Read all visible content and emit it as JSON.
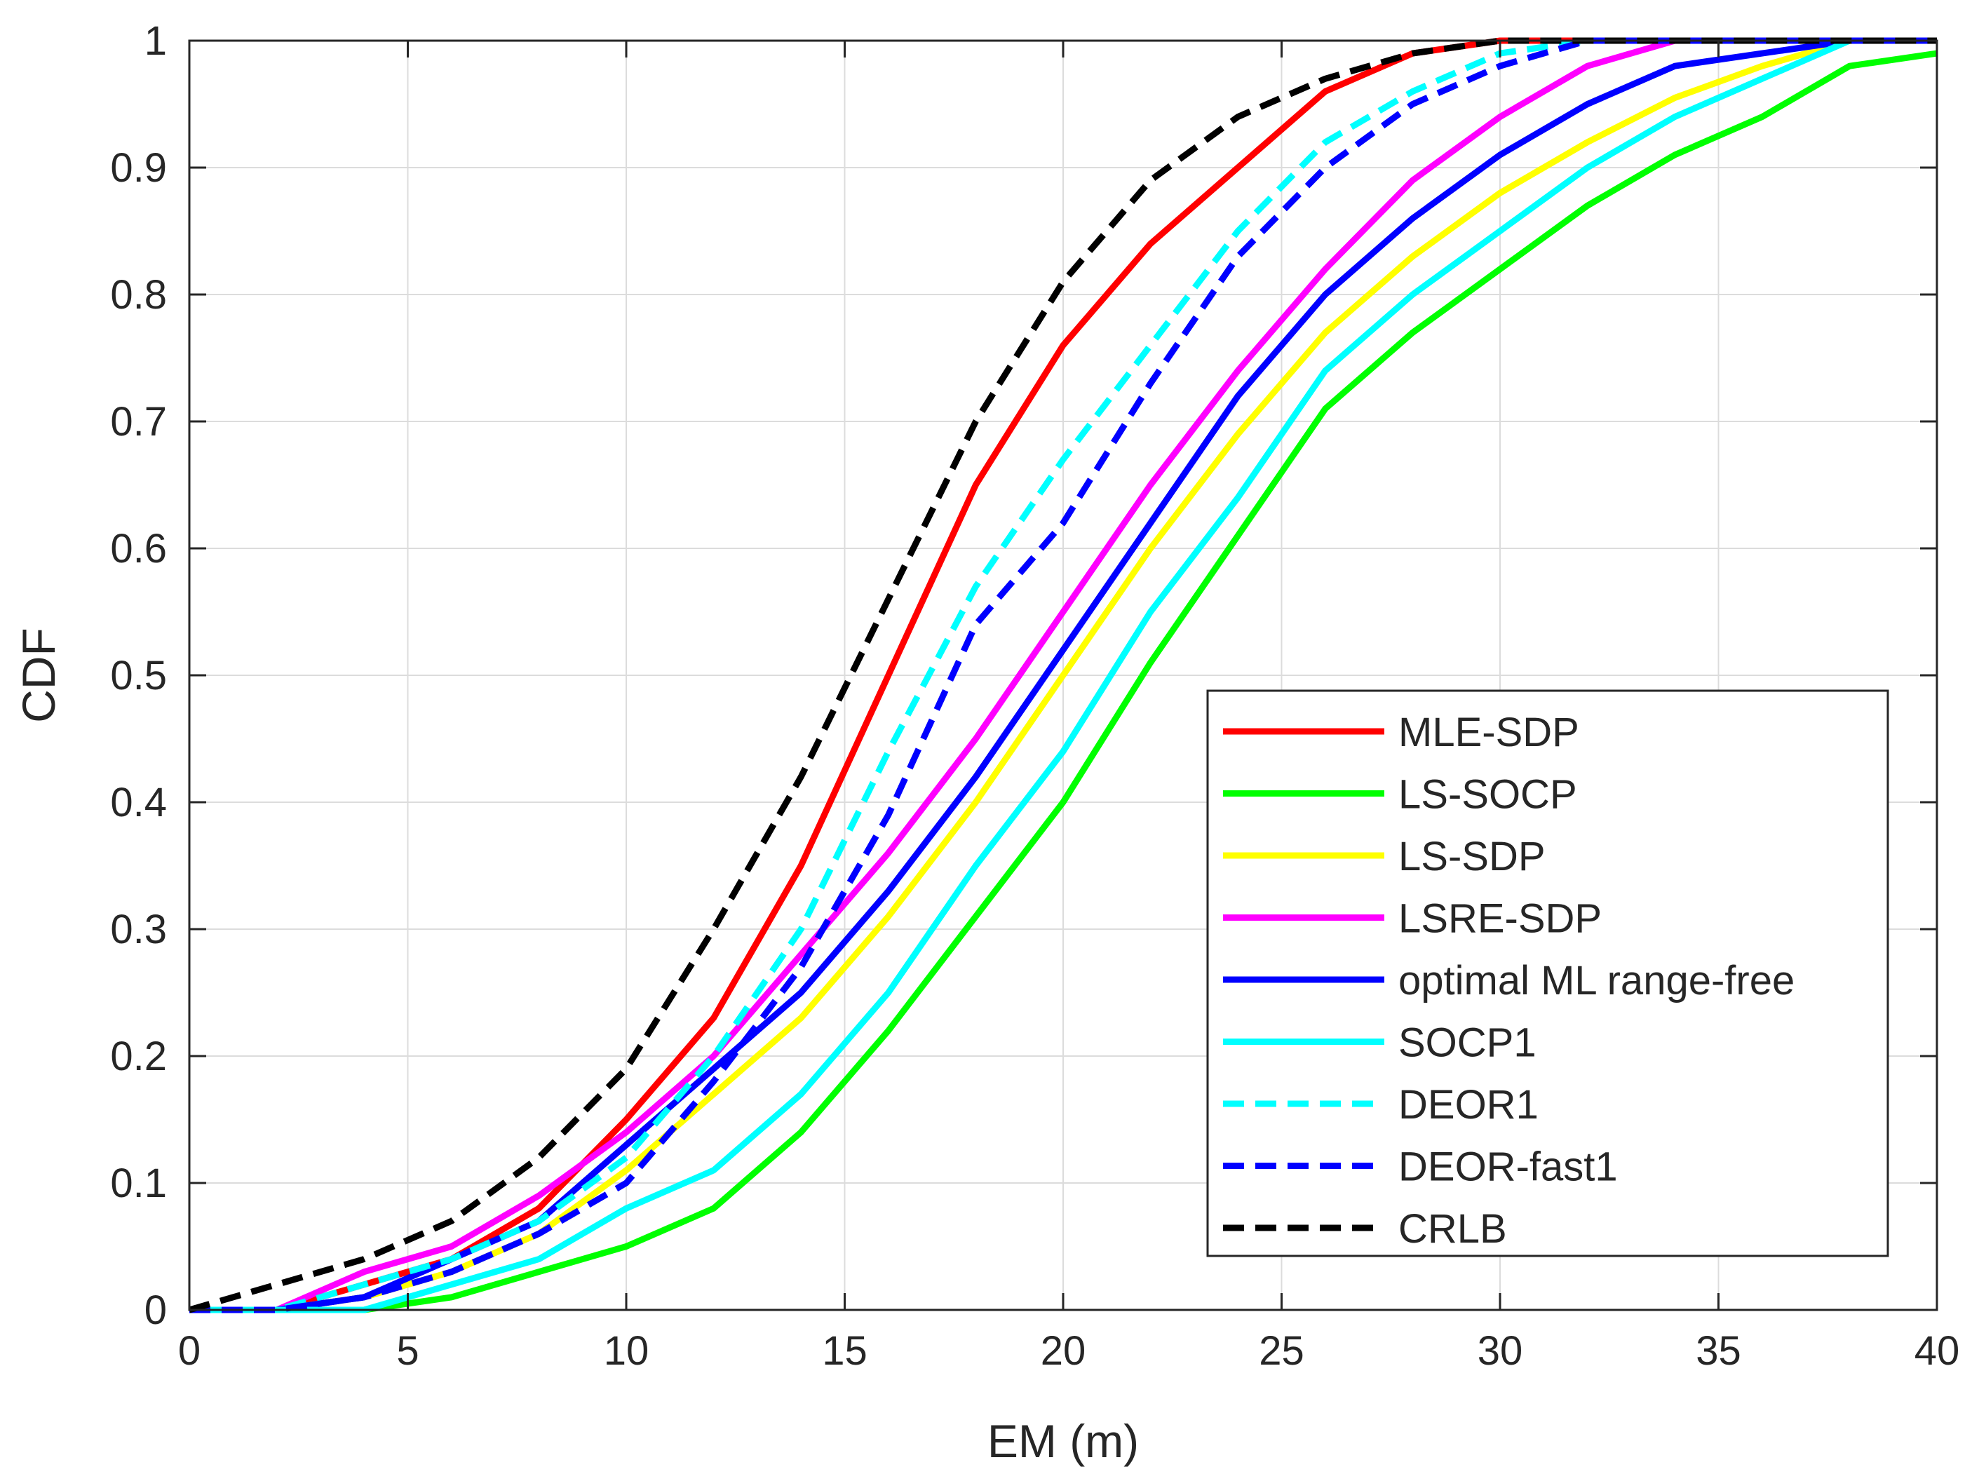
{
  "chart_data": {
    "type": "line",
    "title": "",
    "xlabel": "EM (m)",
    "ylabel": "CDF",
    "xlim": [
      0,
      40
    ],
    "ylim": [
      0,
      1
    ],
    "xticks": [
      0,
      5,
      10,
      15,
      20,
      25,
      30,
      35,
      40
    ],
    "yticks": [
      0,
      0.1,
      0.2,
      0.3,
      0.4,
      0.5,
      0.6,
      0.7,
      0.8,
      0.9,
      1
    ],
    "xtick_labels": [
      "0",
      "5",
      "10",
      "15",
      "20",
      "25",
      "30",
      "35",
      "40"
    ],
    "ytick_labels": [
      "0",
      "0.1",
      "0.2",
      "0.3",
      "0.4",
      "0.5",
      "0.6",
      "0.7",
      "0.8",
      "0.9",
      "1"
    ],
    "grid": true,
    "legend_position": "bottom-right",
    "x": [
      0,
      2,
      4,
      6,
      8,
      10,
      12,
      14,
      16,
      18,
      20,
      22,
      24,
      26,
      28,
      30,
      32,
      34,
      36,
      38,
      40
    ],
    "series": [
      {
        "name": "MLE-SDP",
        "color": "#ff0000",
        "dash": "solid",
        "values": [
          0,
          0,
          0.02,
          0.04,
          0.08,
          0.15,
          0.23,
          0.35,
          0.5,
          0.65,
          0.76,
          0.84,
          0.9,
          0.96,
          0.99,
          1,
          1,
          1,
          1,
          1,
          1
        ]
      },
      {
        "name": "LS-SOCP",
        "color": "#00ff00",
        "dash": "solid",
        "values": [
          0,
          0,
          0,
          0.01,
          0.03,
          0.05,
          0.08,
          0.14,
          0.22,
          0.31,
          0.4,
          0.51,
          0.61,
          0.71,
          0.77,
          0.82,
          0.87,
          0.91,
          0.94,
          0.98,
          0.99
        ]
      },
      {
        "name": "LS-SDP",
        "color": "#ffff00",
        "dash": "solid",
        "values": [
          0,
          0,
          0.01,
          0.03,
          0.06,
          0.11,
          0.17,
          0.23,
          0.31,
          0.4,
          0.5,
          0.6,
          0.69,
          0.77,
          0.83,
          0.88,
          0.92,
          0.955,
          0.98,
          1,
          1
        ]
      },
      {
        "name": "LSRE-SDP",
        "color": "#ff00ff",
        "dash": "solid",
        "values": [
          0,
          0,
          0.03,
          0.05,
          0.09,
          0.14,
          0.2,
          0.28,
          0.36,
          0.45,
          0.55,
          0.65,
          0.74,
          0.82,
          0.89,
          0.94,
          0.98,
          1,
          1,
          1,
          1
        ]
      },
      {
        "name": "optimal ML range-free",
        "color": "#0000ff",
        "dash": "solid",
        "values": [
          0,
          0,
          0.01,
          0.04,
          0.07,
          0.13,
          0.19,
          0.25,
          0.33,
          0.42,
          0.52,
          0.62,
          0.72,
          0.8,
          0.86,
          0.91,
          0.95,
          0.98,
          0.99,
          1,
          1
        ]
      },
      {
        "name": "SOCP1",
        "color": "#00ffff",
        "dash": "solid",
        "values": [
          0,
          0,
          0,
          0.02,
          0.04,
          0.08,
          0.11,
          0.17,
          0.25,
          0.35,
          0.44,
          0.55,
          0.64,
          0.74,
          0.8,
          0.85,
          0.9,
          0.94,
          0.97,
          1,
          1
        ]
      },
      {
        "name": "DEOR1",
        "color": "#00ffff",
        "dash": "dashed",
        "values": [
          0,
          0,
          0.02,
          0.04,
          0.07,
          0.12,
          0.2,
          0.3,
          0.44,
          0.57,
          0.67,
          0.76,
          0.85,
          0.92,
          0.96,
          0.99,
          1,
          1,
          1,
          1,
          1
        ]
      },
      {
        "name": "DEOR-fast1",
        "color": "#0000ff",
        "dash": "dashed",
        "values": [
          0,
          0,
          0.01,
          0.03,
          0.06,
          0.1,
          0.18,
          0.27,
          0.39,
          0.54,
          0.62,
          0.73,
          0.83,
          0.9,
          0.95,
          0.98,
          1,
          1,
          1,
          1,
          1
        ]
      },
      {
        "name": "CRLB",
        "color": "#000000",
        "dash": "dashed",
        "values": [
          0,
          0.02,
          0.04,
          0.07,
          0.12,
          0.19,
          0.3,
          0.42,
          0.56,
          0.7,
          0.81,
          0.89,
          0.94,
          0.97,
          0.99,
          1,
          1,
          1,
          1,
          1,
          1
        ]
      }
    ]
  }
}
